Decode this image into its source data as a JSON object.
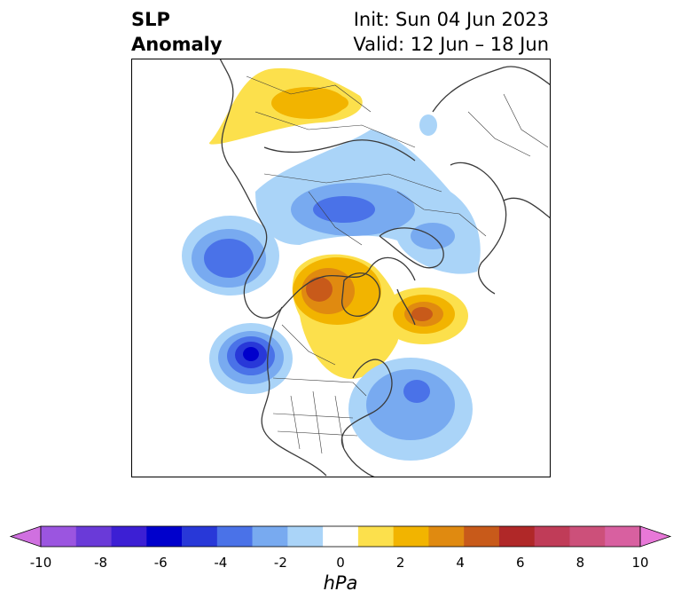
{
  "title": {
    "left_line1": "SLP",
    "left_line2": "Anomaly",
    "right_line1": "Init: Sun 04 Jun 2023",
    "right_line2": "Valid: 12 Jun – 18 Jun"
  },
  "map": {
    "projection": "north-polar-stereographic",
    "anomaly_features": [
      {
        "name": "siberia-ridge",
        "sign": "positive",
        "peak_hpa": 3
      },
      {
        "name": "arctic-trough",
        "sign": "negative",
        "peak_hpa": -4
      },
      {
        "name": "east-pacific-low",
        "sign": "negative",
        "peak_hpa": -4
      },
      {
        "name": "canada-greenland-high",
        "sign": "positive",
        "peak_hpa": 5
      },
      {
        "name": "north-atlantic-high",
        "sign": "positive",
        "peak_hpa": 5
      },
      {
        "name": "ne-pacific-low",
        "sign": "negative",
        "peak_hpa": -7
      },
      {
        "name": "western-atlantic-low",
        "sign": "negative",
        "peak_hpa": -4
      }
    ]
  },
  "colorbar": {
    "unit": "hPa",
    "range": [
      -10,
      10
    ],
    "step": 1,
    "extend": "both",
    "tick_labels": [
      "-10",
      "-8",
      "-6",
      "-4",
      "-2",
      "0",
      "2",
      "4",
      "6",
      "8",
      "10"
    ],
    "colors": [
      "#d070e0",
      "#9b55e0",
      "#6a3ad8",
      "#3c1fd4",
      "#0000cc",
      "#2838d8",
      "#4a72e8",
      "#78aaf0",
      "#aad4f8",
      "#ffffff",
      "#fce04c",
      "#f2b400",
      "#e08a10",
      "#c85a1a",
      "#b02828",
      "#c03c58",
      "#cc507a",
      "#d860a0",
      "#e878d8"
    ]
  }
}
